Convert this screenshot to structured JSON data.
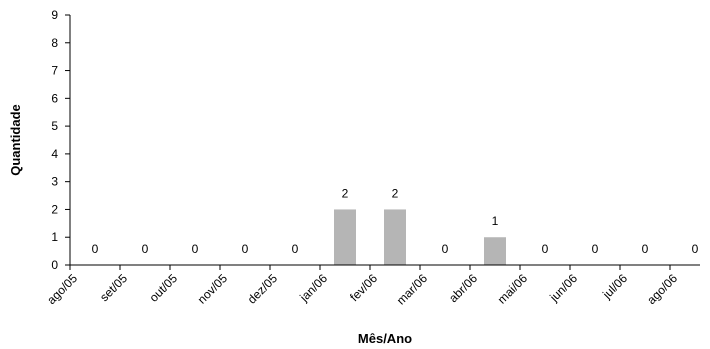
{
  "chart_data": {
    "type": "bar",
    "categories": [
      "ago/05",
      "set/05",
      "out/05",
      "nov/05",
      "dez/05",
      "jan/06",
      "fev/06",
      "mar/06",
      "abr/06",
      "mai/06",
      "jun/06",
      "jul/06",
      "ago/06"
    ],
    "values": [
      0,
      0,
      0,
      0,
      0,
      2,
      2,
      0,
      1,
      0,
      0,
      0,
      0
    ],
    "xlabel": "Mês/Ano",
    "ylabel": "Quantidade",
    "ylim": [
      0,
      9
    ],
    "yticks": [
      0,
      1,
      2,
      3,
      4,
      5,
      6,
      7,
      8,
      9
    ],
    "grid": false,
    "bar_color": "#b5b5b5",
    "axis_color": "#000000"
  }
}
